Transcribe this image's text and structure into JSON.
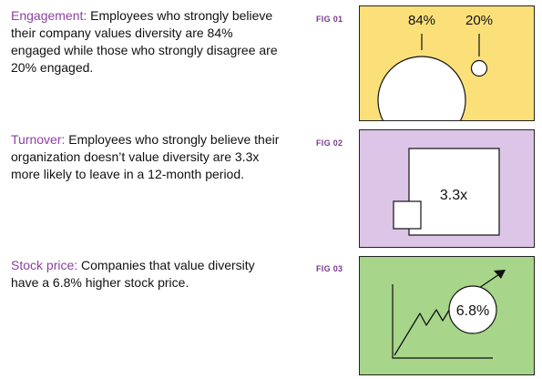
{
  "colors": {
    "keyword": "#8e3fa2",
    "fig_label": "#7a3a8f",
    "panel_yellow": "#fbe07a",
    "panel_purple": "#dcc5e6",
    "panel_green": "#a7d58a",
    "line": "#111111"
  },
  "stats": [
    {
      "keyword": "Engagement:",
      "text": " Employees who strongly believe their company values diversity are 84% engaged while those who strongly disagree are 20% engaged."
    },
    {
      "keyword": "Turnover:",
      "text": " Employees who strongly believe their organization doesn’t value diversity are 3.3x more likely to leave in a 12-month period."
    },
    {
      "keyword": "Stock price:",
      "text": " Companies that value diversity have a 6.8% higher stock price."
    }
  ],
  "figures": [
    {
      "label": "FIG 01",
      "values": [
        "84%",
        "20%"
      ],
      "fractions": [
        0.84,
        0.2
      ]
    },
    {
      "label": "FIG 02",
      "value": "3.3x",
      "ratio": 3.3
    },
    {
      "label": "FIG 03",
      "value": "6.8%"
    }
  ]
}
